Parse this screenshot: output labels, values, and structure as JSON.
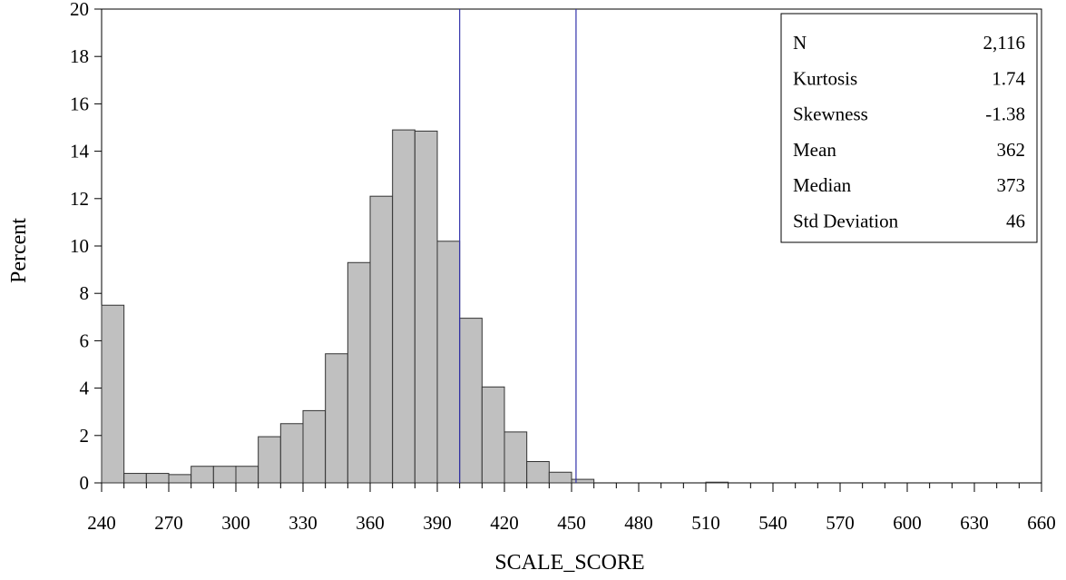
{
  "chart_data": {
    "type": "bar",
    "title": "",
    "xlabel": "SCALE_SCORE",
    "ylabel": "Percent",
    "bin_width": 10,
    "bins": [
      {
        "start": 240,
        "value": 7.5
      },
      {
        "start": 250,
        "value": 0.4
      },
      {
        "start": 260,
        "value": 0.4
      },
      {
        "start": 270,
        "value": 0.35
      },
      {
        "start": 280,
        "value": 0.7
      },
      {
        "start": 290,
        "value": 0.7
      },
      {
        "start": 300,
        "value": 0.7
      },
      {
        "start": 310,
        "value": 1.95
      },
      {
        "start": 320,
        "value": 2.5
      },
      {
        "start": 330,
        "value": 3.05
      },
      {
        "start": 340,
        "value": 5.45
      },
      {
        "start": 350,
        "value": 9.3
      },
      {
        "start": 360,
        "value": 12.1
      },
      {
        "start": 370,
        "value": 14.9
      },
      {
        "start": 380,
        "value": 14.85
      },
      {
        "start": 390,
        "value": 10.2
      },
      {
        "start": 400,
        "value": 6.95
      },
      {
        "start": 410,
        "value": 4.05
      },
      {
        "start": 420,
        "value": 2.15
      },
      {
        "start": 430,
        "value": 0.9
      },
      {
        "start": 440,
        "value": 0.45
      },
      {
        "start": 450,
        "value": 0.15
      },
      {
        "start": 510,
        "value": 0.03
      }
    ],
    "xlim": [
      240,
      660
    ],
    "ylim": [
      0,
      20
    ],
    "xticks": [
      240,
      270,
      300,
      330,
      360,
      390,
      420,
      450,
      480,
      510,
      540,
      570,
      600,
      630,
      660
    ],
    "yticks": [
      0,
      2,
      4,
      6,
      8,
      10,
      12,
      14,
      16,
      18,
      20
    ],
    "reference_lines": [
      400,
      452
    ],
    "colors": {
      "bar_fill": "#c0c0c0",
      "bar_stroke": "#333333",
      "reference_line": "#3333aa"
    },
    "stats": [
      {
        "label": "N",
        "value": "2,116"
      },
      {
        "label": "Kurtosis",
        "value": "1.74"
      },
      {
        "label": "Skewness",
        "value": "-1.38"
      },
      {
        "label": "Mean",
        "value": "362"
      },
      {
        "label": "Median",
        "value": "373"
      },
      {
        "label": "Std Deviation",
        "value": "46"
      }
    ],
    "stats_placement": "top-right",
    "grid": false
  }
}
